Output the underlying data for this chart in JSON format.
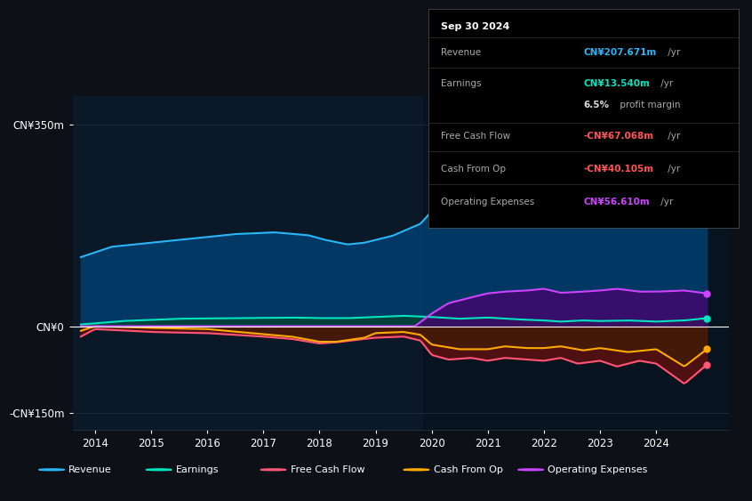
{
  "bg_color": "#0d1117",
  "plot_bg": "#0a1828",
  "rev_color": "#29b6f6",
  "earn_color": "#00e5c0",
  "fcf_color": "#ff5577",
  "cfo_color": "#ffaa00",
  "opex_color": "#cc44ff",
  "rev_fill": "#003d6b",
  "earn_fill": "#004433",
  "fcf_fill": "#5c1010",
  "cfo_fill": "#3d2000",
  "opex_fill": "#4a0070",
  "zero_line": "#ffffff",
  "grid_line": "#1e2e3e",
  "legend_items": [
    {
      "label": "Revenue",
      "color": "#29b6f6"
    },
    {
      "label": "Earnings",
      "color": "#00e5c0"
    },
    {
      "label": "Free Cash Flow",
      "color": "#ff5577"
    },
    {
      "label": "Cash From Op",
      "color": "#ffaa00"
    },
    {
      "label": "Operating Expenses",
      "color": "#cc44ff"
    }
  ],
  "info_title": "Sep 30 2024",
  "info_rows": [
    {
      "label": "Revenue",
      "value": "CN¥207.671m",
      "suffix": " /yr",
      "vcolor": "#29b6f6"
    },
    {
      "label": "Earnings",
      "value": "CN¥13.540m",
      "suffix": " /yr",
      "vcolor": "#00e5c0"
    },
    {
      "label": "",
      "value": "6.5%",
      "suffix": " profit margin",
      "vcolor": "#dddddd"
    },
    {
      "label": "Free Cash Flow",
      "value": "-CN¥67.068m",
      "suffix": " /yr",
      "vcolor": "#ff5555"
    },
    {
      "label": "Cash From Op",
      "value": "-CN¥40.105m",
      "suffix": " /yr",
      "vcolor": "#ff5555"
    },
    {
      "label": "Operating Expenses",
      "value": "CN¥56.610m",
      "suffix": " /yr",
      "vcolor": "#cc44ff"
    }
  ],
  "yticks_values": [
    350,
    0,
    -150
  ],
  "yticks_labels": [
    "CN¥350m",
    "CN¥0",
    "-CN¥150m"
  ],
  "xticks": [
    2014,
    2015,
    2016,
    2017,
    2018,
    2019,
    2020,
    2021,
    2022,
    2023,
    2024
  ]
}
